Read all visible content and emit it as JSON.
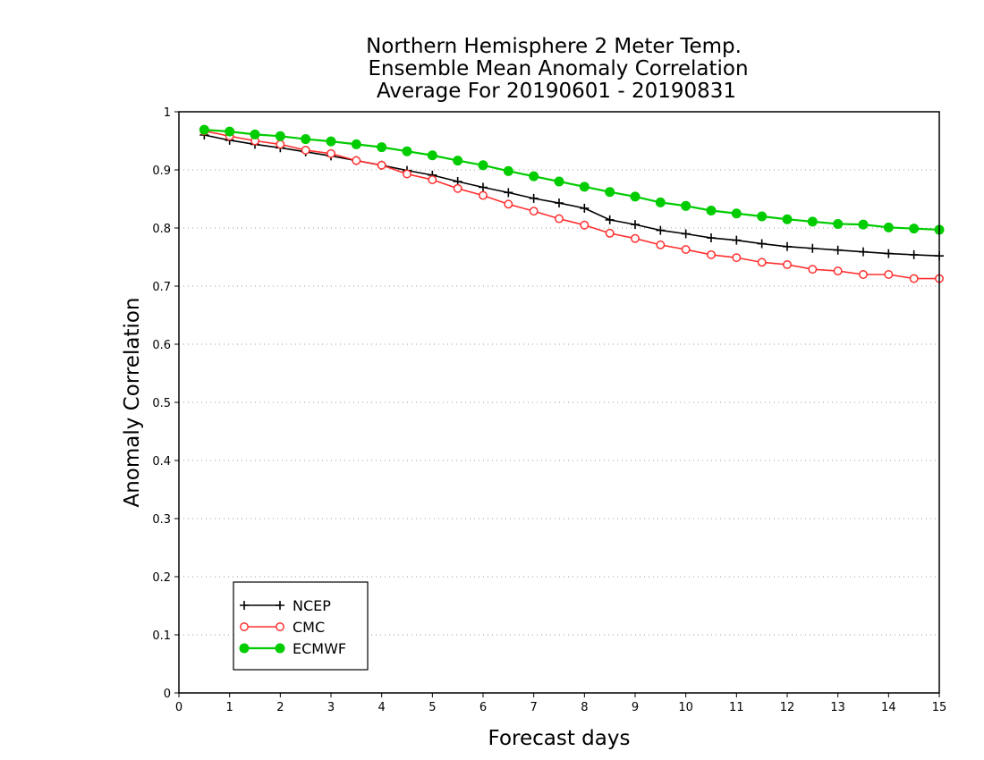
{
  "chart_data": {
    "type": "line",
    "title_lines": [
      "Northern Hemisphere 2 Meter Temp.",
      "Ensemble Mean Anomaly Correlation",
      "Average For 20190601 - 20190831"
    ],
    "xlabel": "Forecast days",
    "ylabel": "Anomaly Correlation",
    "xlim": [
      0,
      15
    ],
    "ylim": [
      0,
      1
    ],
    "xticks": [
      "0",
      "1",
      "2",
      "3",
      "4",
      "5",
      "6",
      "7",
      "8",
      "9",
      "10",
      "11",
      "12",
      "13",
      "14",
      "15"
    ],
    "yticks": [
      "0",
      "0.1",
      "0.2",
      "0.3",
      "0.4",
      "0.5",
      "0.6",
      "0.7",
      "0.8",
      "0.9",
      "1"
    ],
    "grid": "horizontal dotted",
    "legend_position": "bottom-left",
    "x": [
      0.5,
      1,
      1.5,
      2,
      2.5,
      3,
      3.5,
      4,
      4.5,
      5,
      5.5,
      6,
      6.5,
      7,
      7.5,
      8,
      8.5,
      9,
      9.5,
      10,
      10.5,
      11,
      11.5,
      12,
      12.5,
      13,
      13.5,
      14,
      14.5,
      15
    ],
    "series": [
      {
        "name": "NCEP",
        "color": "#000000",
        "marker": "plus",
        "values": [
          0.96,
          0.951,
          0.944,
          0.938,
          0.931,
          0.924,
          0.916,
          0.908,
          0.899,
          0.891,
          0.88,
          0.87,
          0.861,
          0.851,
          0.843,
          0.834,
          0.814,
          0.806,
          0.796,
          0.79,
          0.783,
          0.779,
          0.773,
          0.768,
          0.765,
          0.762,
          0.759,
          0.756,
          0.754,
          0.752
        ]
      },
      {
        "name": "CMC",
        "color": "#ff3030",
        "marker": "open-circle",
        "values": [
          0.967,
          0.958,
          0.95,
          0.944,
          0.934,
          0.928,
          0.916,
          0.908,
          0.893,
          0.883,
          0.868,
          0.856,
          0.841,
          0.829,
          0.816,
          0.805,
          0.791,
          0.782,
          0.771,
          0.763,
          0.754,
          0.749,
          0.741,
          0.737,
          0.729,
          0.726,
          0.72,
          0.72,
          0.713,
          0.713
        ]
      },
      {
        "name": "ECMWF",
        "color": "#00cc00",
        "marker": "filled-circle",
        "values": [
          0.969,
          0.966,
          0.961,
          0.958,
          0.953,
          0.949,
          0.944,
          0.939,
          0.932,
          0.925,
          0.916,
          0.908,
          0.898,
          0.889,
          0.88,
          0.871,
          0.862,
          0.854,
          0.844,
          0.838,
          0.83,
          0.825,
          0.82,
          0.815,
          0.811,
          0.807,
          0.806,
          0.801,
          0.799,
          0.797
        ]
      }
    ]
  }
}
